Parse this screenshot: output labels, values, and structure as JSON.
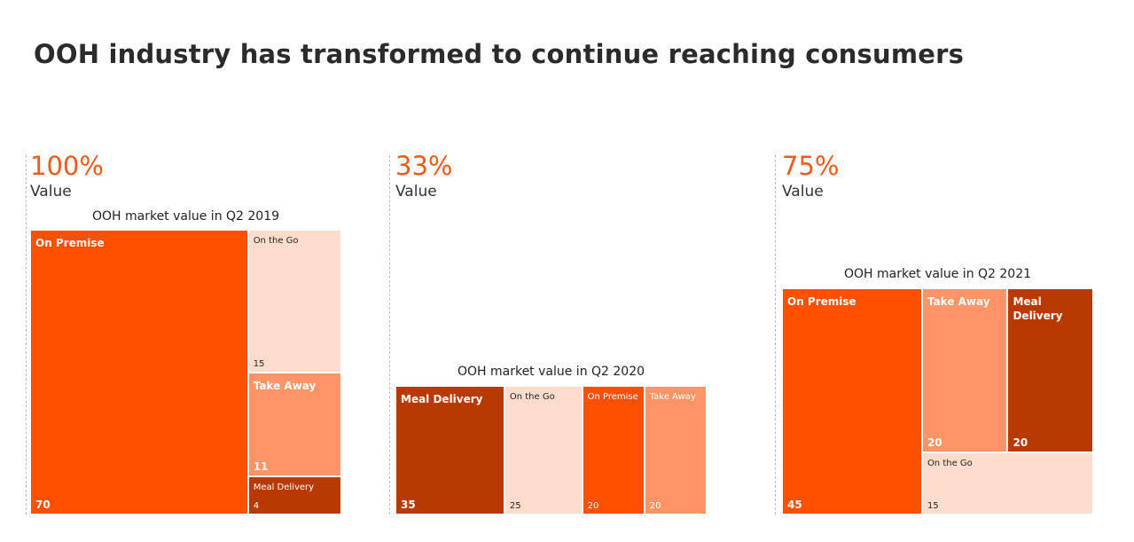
{
  "title": "OOH industry has transformed to continue reaching consumers",
  "chart_data": [
    {
      "type": "treemap",
      "headline": "100%",
      "subtitle": "Value",
      "title": "OOH market value in Q2 2019",
      "categories": [
        "On Premise",
        "On the Go",
        "Take Away",
        "Meal Delivery"
      ],
      "values": [
        70,
        15,
        11,
        4
      ],
      "colors": [
        "#ff5000",
        "#ffdccb",
        "#ff9466",
        "#b83a00"
      ]
    },
    {
      "type": "treemap",
      "headline": "33%",
      "subtitle": "Value",
      "title": "OOH market value in Q2  2020",
      "categories": [
        "Meal Delivery",
        "On the Go",
        "On Premise",
        "Take Away"
      ],
      "values": [
        35,
        25,
        20,
        20
      ],
      "colors": [
        "#b83a00",
        "#ffdccb",
        "#ff5000",
        "#ff9466"
      ]
    },
    {
      "type": "treemap",
      "headline": "75%",
      "subtitle": "Value",
      "title": "OOH market value in Q2 2021",
      "categories": [
        "On Premise",
        "Take Away",
        "Meal Delivery",
        "On the Go"
      ],
      "values": [
        45,
        20,
        20,
        15
      ],
      "colors": [
        "#ff5000",
        "#ff9466",
        "#b83a00",
        "#ffdccb"
      ]
    }
  ]
}
